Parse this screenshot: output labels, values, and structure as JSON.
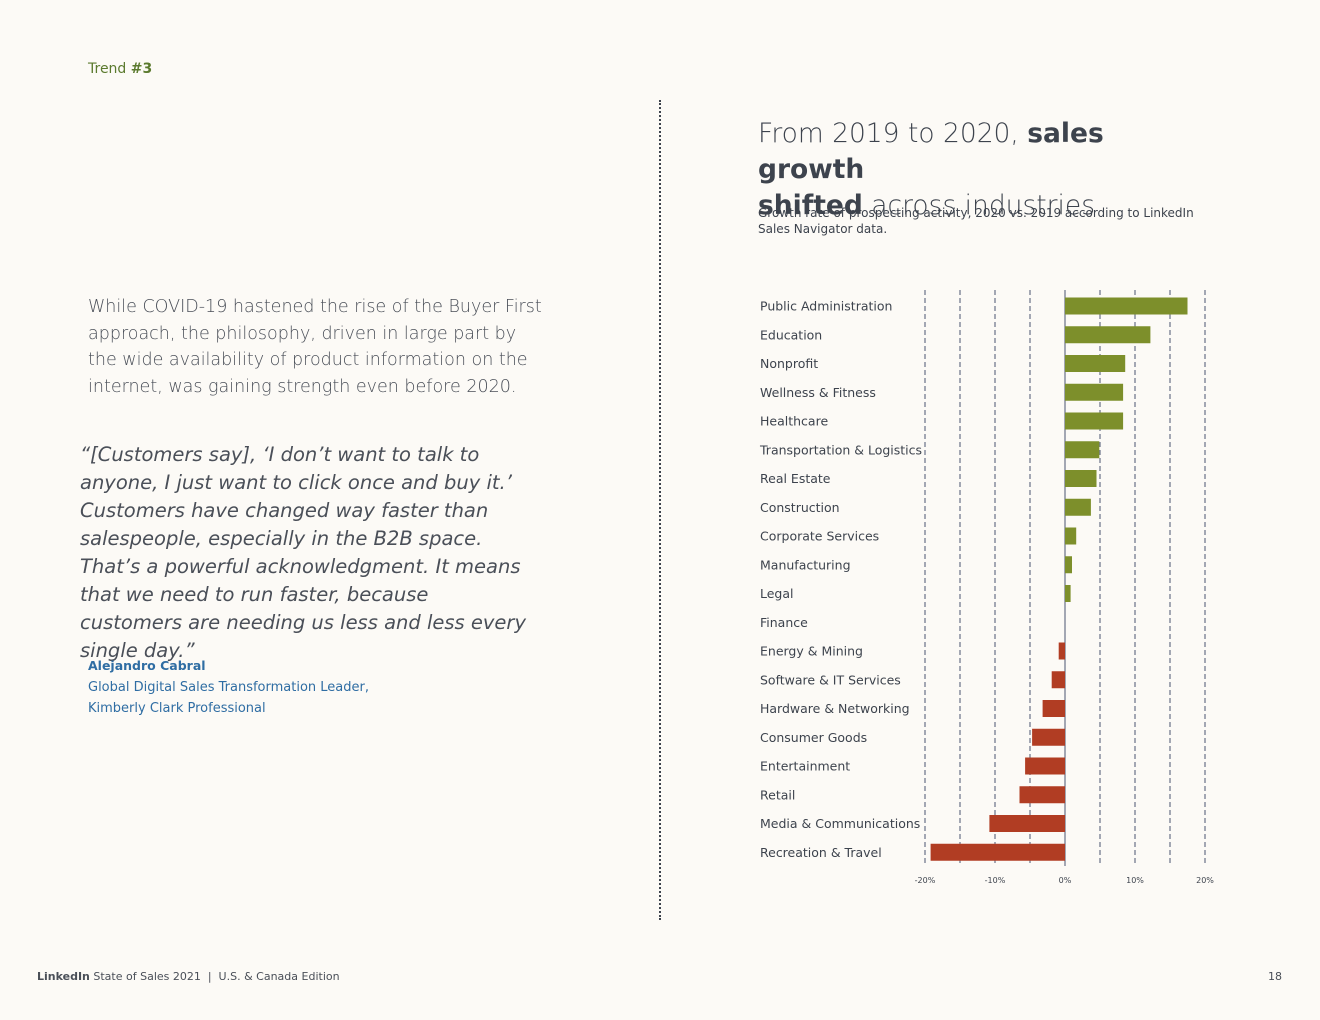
{
  "header": {
    "trend_label": "Trend",
    "trend_number": "#3"
  },
  "intro": {
    "paragraph": "While COVID-19 hastened the rise of the Buyer First approach, the philosophy, driven in large part by the wide availability of product information on the internet, was gaining strength even before 2020."
  },
  "quote": {
    "text": "“[Customers say], ‘I don’t want to talk to anyone, I just want to click once and buy it.’ Customers have changed way faster than salespeople, especially in the B2B space. That’s a powerful acknowledgment. It means that we need to run faster, because customers are needing us less and less every single day.”",
    "author": "Alejandro Cabral",
    "role_line1": "Global Digital Sales Transformation Leader,",
    "role_line2": "Kimberly Clark Professional"
  },
  "chart_header": {
    "title_part1": "From 2019 to 2020, ",
    "title_bold1": "sales growth",
    "title_bold2": "shifted",
    "title_part2": " across industries",
    "subtitle": "Growth rate of prospecting activity, 2020 vs. 2019 according to LinkedIn Sales Navigator data."
  },
  "chart_data": {
    "type": "bar",
    "orientation": "horizontal",
    "title": "From 2019 to 2020, sales growth shifted across industries",
    "subtitle": "Growth rate of prospecting activity, 2020 vs. 2019 according to LinkedIn Sales Navigator data.",
    "xlabel": "",
    "ylabel": "",
    "xlim": [
      -20,
      20
    ],
    "x_ticks": [
      -20,
      -10,
      0,
      10,
      20
    ],
    "x_tick_labels": [
      "-20%",
      "-10%",
      "0%",
      "10%",
      "20%"
    ],
    "grid": true,
    "grid_step": 5,
    "categories": [
      "Public Administration",
      "Education",
      "Nonprofit",
      "Wellness & Fitness",
      "Healthcare",
      "Transportation & Logistics",
      "Real Estate",
      "Construction",
      "Corporate Services",
      "Manufacturing",
      "Legal",
      "Finance",
      "Energy & Mining",
      "Software & IT Services",
      "Hardware & Networking",
      "Consumer Goods",
      "Entertainment",
      "Retail",
      "Media & Communications",
      "Recreation & Travel"
    ],
    "values": [
      17.5,
      12.2,
      8.6,
      8.3,
      8.3,
      4.9,
      4.5,
      3.7,
      1.6,
      1.0,
      0.8,
      0.0,
      -0.9,
      -1.9,
      -3.2,
      -4.7,
      -5.7,
      -6.5,
      -10.8,
      -19.2
    ],
    "positive_color": "#7d8f2b",
    "negative_color": "#b13d23"
  },
  "footer": {
    "brand": "LinkedIn",
    "title": " State of Sales 2021  |  U.S. & Canada Edition",
    "page_number": "18"
  }
}
